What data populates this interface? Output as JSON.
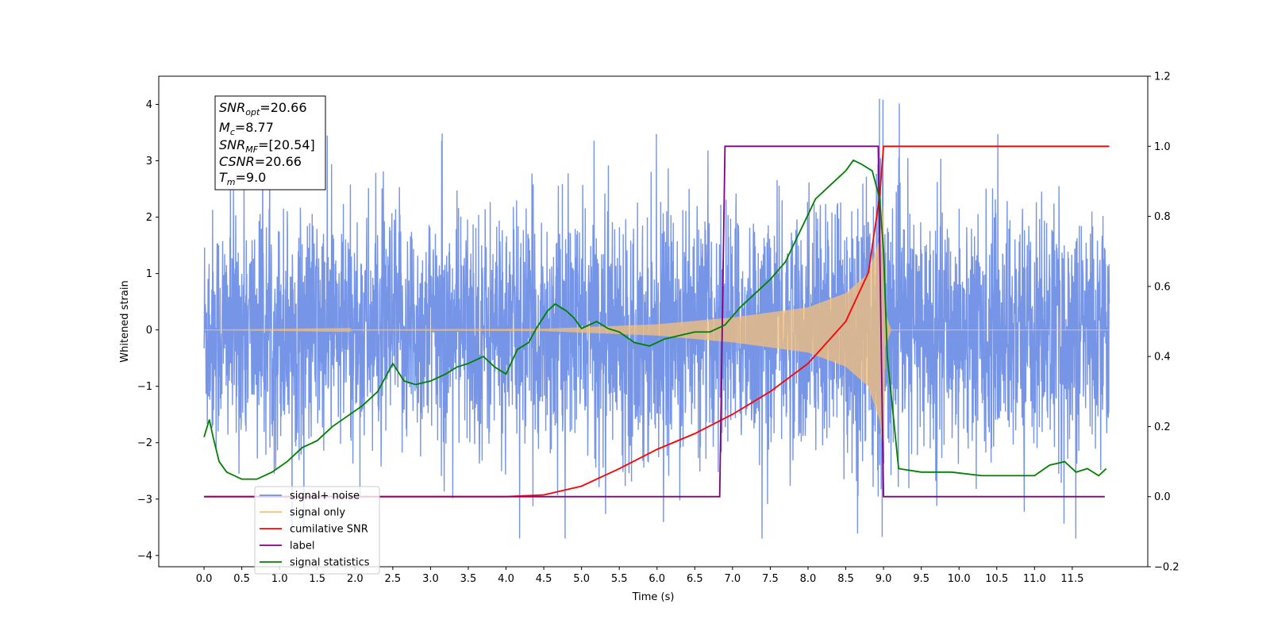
{
  "chart_data": {
    "type": "line",
    "xlabel": "Time (s)",
    "ylabel_left": "Whitened strain",
    "xlim": [
      -0.6,
      12.5
    ],
    "ylim_left": [
      -4.2,
      4.5
    ],
    "ylim_right": [
      -0.2,
      1.2
    ],
    "x_ticks": [
      0.0,
      0.5,
      1.0,
      1.5,
      2.0,
      2.5,
      3.0,
      3.5,
      4.0,
      4.5,
      5.0,
      5.5,
      6.0,
      6.5,
      7.0,
      7.5,
      8.0,
      8.5,
      9.0,
      9.5,
      10.0,
      10.5,
      11.0,
      11.5
    ],
    "x_tick_labels": [
      "0.0",
      "0.5",
      "1.0",
      "1.5",
      "2.0",
      "2.5",
      "3.0",
      "3.5",
      "4.0",
      "4.5",
      "5.0",
      "5.5",
      "6.0",
      "6.5",
      "7.0",
      "7.5",
      "8.0",
      "8.5",
      "9.0",
      "9.5",
      "10.0",
      "10.5",
      "11.0",
      "11.5"
    ],
    "y_left_ticks": [
      -4,
      -3,
      -2,
      -1,
      0,
      1,
      2,
      3,
      4
    ],
    "y_left_tick_labels": [
      "−4",
      "−3",
      "−2",
      "−1",
      "0",
      "1",
      "2",
      "3",
      "4"
    ],
    "y_right_ticks": [
      -0.2,
      0.0,
      0.2,
      0.4,
      0.6,
      0.8,
      1.0,
      1.2
    ],
    "y_right_tick_labels": [
      "−0.2",
      "0.0",
      "0.2",
      "0.4",
      "0.6",
      "0.8",
      "1.0",
      "1.2"
    ],
    "legend_position": "lower-left",
    "legend": [
      {
        "label": "signal+ noise",
        "color": "#6f8fe6"
      },
      {
        "label": "signal only",
        "color": "#f7c07a"
      },
      {
        "label": "cumilative SNR",
        "color": "#ff0000"
      },
      {
        "label": "label",
        "color": "#800080"
      },
      {
        "label": "signal statistics",
        "color": "#008000"
      }
    ],
    "info_box": {
      "snr_opt": "SNR",
      "snr_opt_sub": "opt",
      "snr_opt_val": "=20.66",
      "mc": "M",
      "mc_sub": "c",
      "mc_val": "=8.77",
      "snr_mf": "SNR",
      "snr_mf_sub": "MF",
      "snr_mf_val": "=[20.54]",
      "csnr": "CSNR",
      "csnr_val": "=20.66",
      "tm": "T",
      "tm_sub": "m",
      "tm_val": "=9.0"
    },
    "series": [
      {
        "name": "signal+ noise",
        "axis": "left",
        "color": "#6f8fe6",
        "x_range": [
          0.0,
          11.99
        ],
        "noise_envelope": {
          "min": -3.7,
          "max": 4.1
        }
      },
      {
        "name": "signal only",
        "axis": "left",
        "color": "#f7c07a",
        "x_range": [
          0.0,
          11.99
        ],
        "chirp_peak_time": 9.0,
        "amplitude_envelope": [
          [
            0.0,
            0.0
          ],
          [
            4.5,
            0.02
          ],
          [
            6.0,
            0.1
          ],
          [
            7.0,
            0.22
          ],
          [
            8.0,
            0.4
          ],
          [
            8.5,
            0.65
          ],
          [
            8.8,
            1.0
          ],
          [
            8.95,
            1.6
          ],
          [
            9.0,
            2.2
          ],
          [
            9.02,
            0.3
          ],
          [
            9.1,
            0.0
          ],
          [
            11.99,
            0.0
          ]
        ]
      },
      {
        "name": "cumilative SNR",
        "axis": "right",
        "color": "#ff0000",
        "x": [
          0.0,
          4.0,
          4.5,
          5.0,
          5.5,
          6.0,
          6.5,
          7.0,
          7.5,
          8.0,
          8.5,
          8.8,
          8.95,
          9.0,
          9.01,
          11.99
        ],
        "values": [
          0.0,
          0.0,
          0.005,
          0.03,
          0.08,
          0.135,
          0.18,
          0.235,
          0.3,
          0.38,
          0.5,
          0.64,
          0.86,
          1.0,
          1.0,
          1.0
        ]
      },
      {
        "name": "label",
        "axis": "right",
        "color": "#800080",
        "x": [
          0.0,
          6.83,
          6.9,
          8.93,
          9.0,
          11.93
        ],
        "values": [
          0.0,
          0.0,
          1.0,
          1.0,
          0.0,
          0.0
        ]
      },
      {
        "name": "signal statistics",
        "axis": "right",
        "color": "#008000",
        "x": [
          0.0,
          0.07,
          0.12,
          0.2,
          0.3,
          0.5,
          0.7,
          0.9,
          1.1,
          1.3,
          1.5,
          1.7,
          1.9,
          2.1,
          2.3,
          2.5,
          2.65,
          2.8,
          3.0,
          3.2,
          3.35,
          3.5,
          3.7,
          3.85,
          4.0,
          4.15,
          4.3,
          4.4,
          4.55,
          4.65,
          4.8,
          4.9,
          5.0,
          5.2,
          5.35,
          5.5,
          5.7,
          5.9,
          6.1,
          6.3,
          6.5,
          6.7,
          6.9,
          7.1,
          7.3,
          7.5,
          7.7,
          7.9,
          8.1,
          8.3,
          8.5,
          8.6,
          8.7,
          8.85,
          8.95,
          9.0,
          9.05,
          9.2,
          9.5,
          9.9,
          10.3,
          10.6,
          10.8,
          11.0,
          11.2,
          11.4,
          11.55,
          11.7,
          11.85,
          11.95
        ],
        "values": [
          0.17,
          0.22,
          0.17,
          0.1,
          0.07,
          0.05,
          0.05,
          0.07,
          0.1,
          0.14,
          0.16,
          0.2,
          0.23,
          0.26,
          0.3,
          0.38,
          0.33,
          0.32,
          0.33,
          0.35,
          0.37,
          0.38,
          0.4,
          0.37,
          0.35,
          0.42,
          0.44,
          0.48,
          0.53,
          0.55,
          0.53,
          0.51,
          0.48,
          0.5,
          0.48,
          0.47,
          0.44,
          0.43,
          0.45,
          0.46,
          0.47,
          0.47,
          0.49,
          0.54,
          0.58,
          0.62,
          0.67,
          0.76,
          0.85,
          0.89,
          0.93,
          0.96,
          0.95,
          0.93,
          0.85,
          0.7,
          0.4,
          0.08,
          0.07,
          0.07,
          0.06,
          0.06,
          0.06,
          0.06,
          0.09,
          0.1,
          0.07,
          0.08,
          0.06,
          0.08
        ]
      }
    ]
  }
}
